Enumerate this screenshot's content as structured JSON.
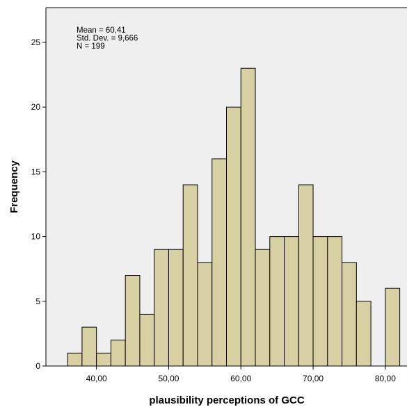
{
  "chart_data": {
    "type": "bar",
    "subtype": "histogram",
    "xlabel": "plausibility perceptions of GCC",
    "ylabel": "Frequency",
    "x_ticks": [
      "40,00",
      "50,00",
      "60,00",
      "70,00",
      "80,00"
    ],
    "x_tick_values": [
      40,
      50,
      60,
      70,
      80
    ],
    "y_ticks": [
      "0",
      "5",
      "10",
      "15",
      "20",
      "25"
    ],
    "y_tick_values": [
      0,
      5,
      10,
      15,
      20,
      25
    ],
    "xlim": [
      33,
      83
    ],
    "ylim": [
      0,
      25
    ],
    "bin_width": 2,
    "bin_starts": [
      36,
      38,
      40,
      42,
      44,
      46,
      48,
      50,
      52,
      54,
      56,
      58,
      60,
      62,
      64,
      66,
      68,
      70,
      72,
      74,
      76,
      80
    ],
    "values": [
      1,
      3,
      1,
      2,
      7,
      4,
      9,
      9,
      14,
      8,
      16,
      20,
      23,
      9,
      10,
      10,
      14,
      10,
      10,
      8,
      5,
      6
    ],
    "stats": [
      "Mean = 60,41",
      "Std. Dev. = 9,666",
      "N = 199"
    ],
    "colors": {
      "bar_fill": "#d6d0a3",
      "bar_stroke": "#000000",
      "plot_background": "#efefef",
      "frame": "#000000"
    },
    "grid": false,
    "legend": "none"
  }
}
